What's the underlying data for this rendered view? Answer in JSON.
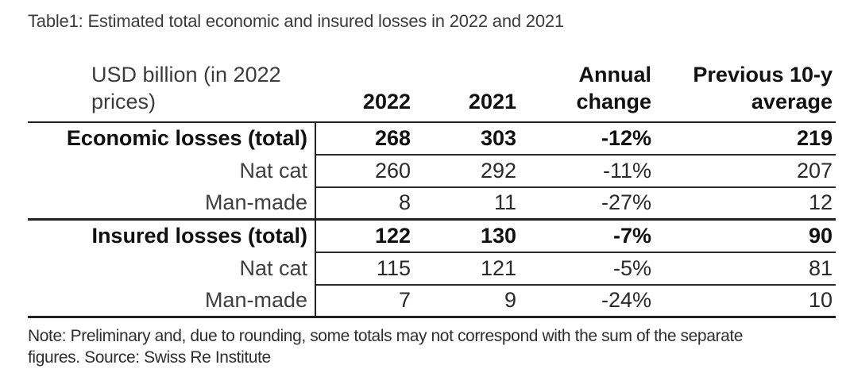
{
  "title": "Table1: Estimated total economic and insured losses in 2022 and 2021",
  "table": {
    "columns": {
      "label": "USD billion (in 2022 prices)",
      "y2022": "2022",
      "y2021": "2021",
      "annual_change": "Annual change",
      "prev_10y_avg": "Previous 10-y average"
    },
    "rows": [
      {
        "label": "Economic losses (total)",
        "y2022": "268",
        "y2021": "303",
        "annual_change": "-12%",
        "prev_10y_avg": "219"
      },
      {
        "label": "Nat cat",
        "y2022": "260",
        "y2021": "292",
        "annual_change": "-11%",
        "prev_10y_avg": "207"
      },
      {
        "label": "Man-made",
        "y2022": "8",
        "y2021": "11",
        "annual_change": "-27%",
        "prev_10y_avg": "12"
      },
      {
        "label": "Insured losses (total)",
        "y2022": "122",
        "y2021": "130",
        "annual_change": "-7%",
        "prev_10y_avg": "90"
      },
      {
        "label": "Nat cat",
        "y2022": "115",
        "y2021": "121",
        "annual_change": "-5%",
        "prev_10y_avg": "81"
      },
      {
        "label": "Man-made",
        "y2022": "7",
        "y2021": "9",
        "annual_change": "-24%",
        "prev_10y_avg": "10"
      }
    ]
  },
  "note_lines": [
    "Note: Preliminary and, due to rounding, some totals may not correspond with the sum of the separate",
    "figures. Source: Swiss Re Institute"
  ],
  "colors": {
    "background": "#ffffff",
    "text_bold": "#111111",
    "text_regular": "#2a2a2a",
    "text_muted": "#3f3f3f",
    "rule": "#222222"
  }
}
